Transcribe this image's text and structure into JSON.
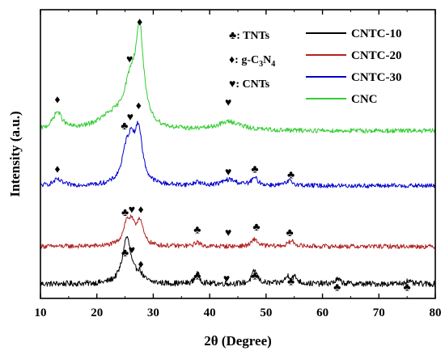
{
  "chart_data": {
    "type": "line",
    "xlabel": "2θ (Degree)",
    "ylabel": "Intensity (a.u.)",
    "xlim": [
      10,
      80
    ],
    "x_ticks": [
      10,
      20,
      30,
      40,
      50,
      60,
      70,
      80
    ],
    "x_tick_labels": [
      "10",
      "20",
      "30",
      "40",
      "50",
      "60",
      "70",
      "80"
    ],
    "y_ticks_shown": false,
    "grid": false,
    "legend_position": "top-right",
    "series": [
      {
        "name": "CNTC-10",
        "color": "#000000",
        "baseline": 0.05,
        "noise": 0.01,
        "peaks": [
          {
            "x": 25.3,
            "height": 0.16,
            "width": 0.9
          },
          {
            "x": 27.5,
            "height": 0.03,
            "width": 0.7
          },
          {
            "x": 37.8,
            "height": 0.035,
            "width": 0.5
          },
          {
            "x": 48.0,
            "height": 0.045,
            "width": 0.6
          },
          {
            "x": 53.9,
            "height": 0.025,
            "width": 0.6
          },
          {
            "x": 55.1,
            "height": 0.02,
            "width": 0.6
          },
          {
            "x": 62.7,
            "height": 0.015,
            "width": 0.6
          },
          {
            "x": 75.0,
            "height": 0.01,
            "width": 0.6
          }
        ]
      },
      {
        "name": "CNTC-20",
        "color": "#b22222",
        "baseline": 0.18,
        "noise": 0.008,
        "peaks": [
          {
            "x": 25.3,
            "height": 0.075,
            "width": 0.8
          },
          {
            "x": 26.2,
            "height": 0.05,
            "width": 0.6
          },
          {
            "x": 27.6,
            "height": 0.085,
            "width": 0.7
          },
          {
            "x": 37.8,
            "height": 0.015,
            "width": 0.5
          },
          {
            "x": 48.0,
            "height": 0.025,
            "width": 0.6
          },
          {
            "x": 54.5,
            "height": 0.018,
            "width": 0.7
          }
        ]
      },
      {
        "name": "CNTC-30",
        "color": "#0000cd",
        "baseline": 0.39,
        "noise": 0.008,
        "peaks": [
          {
            "x": 13.0,
            "height": 0.02,
            "width": 0.9
          },
          {
            "x": 25.3,
            "height": 0.12,
            "width": 1.0
          },
          {
            "x": 26.2,
            "height": 0.08,
            "width": 0.6
          },
          {
            "x": 27.4,
            "height": 0.18,
            "width": 0.8
          },
          {
            "x": 37.8,
            "height": 0.012,
            "width": 0.6
          },
          {
            "x": 43.5,
            "height": 0.02,
            "width": 1.5
          },
          {
            "x": 48.0,
            "height": 0.025,
            "width": 0.7
          },
          {
            "x": 54.2,
            "height": 0.015,
            "width": 0.8
          }
        ]
      },
      {
        "name": "CNC",
        "color": "#32cd32",
        "baseline": 0.58,
        "noise": 0.008,
        "peaks": [
          {
            "x": 13.0,
            "height": 0.06,
            "width": 1.0
          },
          {
            "x": 22.5,
            "height": 0.04,
            "width": 3.0
          },
          {
            "x": 26.0,
            "height": 0.15,
            "width": 1.5
          },
          {
            "x": 27.6,
            "height": 0.3,
            "width": 0.8
          },
          {
            "x": 43.5,
            "height": 0.03,
            "width": 2.5
          }
        ]
      }
    ],
    "annotations": {
      "legend_symbols": [
        {
          "symbol": "♣",
          "text": ": TNTs"
        },
        {
          "symbol": "♦",
          "text": ": g-C",
          "sub": "3",
          "text2": "N",
          "sub2": "4"
        },
        {
          "symbol": "♥",
          "text": ": CNTs"
        }
      ],
      "markers": [
        {
          "symbol": "♦",
          "x": 27.6,
          "y": 0.96
        },
        {
          "symbol": "♥",
          "x": 25.8,
          "y": 0.83
        },
        {
          "symbol": "♦",
          "x": 13.0,
          "y": 0.69
        },
        {
          "symbol": "♥",
          "x": 43.3,
          "y": 0.68
        },
        {
          "symbol": "♦",
          "x": 27.4,
          "y": 0.67
        },
        {
          "symbol": "♥",
          "x": 25.9,
          "y": 0.63
        },
        {
          "symbol": "♣",
          "x": 24.9,
          "y": 0.6
        },
        {
          "symbol": "♦",
          "x": 13.0,
          "y": 0.45
        },
        {
          "symbol": "♥",
          "x": 43.3,
          "y": 0.44
        },
        {
          "symbol": "♣",
          "x": 48.0,
          "y": 0.45
        },
        {
          "symbol": "♣",
          "x": 54.4,
          "y": 0.43
        },
        {
          "symbol": "♣",
          "x": 25.0,
          "y": 0.3
        },
        {
          "symbol": "♥",
          "x": 26.2,
          "y": 0.31
        },
        {
          "symbol": "♦",
          "x": 27.8,
          "y": 0.31
        },
        {
          "symbol": "♣",
          "x": 37.8,
          "y": 0.24
        },
        {
          "symbol": "♥",
          "x": 43.3,
          "y": 0.23
        },
        {
          "symbol": "♣",
          "x": 48.3,
          "y": 0.25
        },
        {
          "symbol": "♣",
          "x": 54.2,
          "y": 0.23
        },
        {
          "symbol": "♣",
          "x": 25.0,
          "y": 0.16
        },
        {
          "symbol": "♥",
          "x": 26.2,
          "y": 0.17
        },
        {
          "symbol": "♦",
          "x": 27.8,
          "y": 0.12
        },
        {
          "symbol": "♣",
          "x": 37.8,
          "y": 0.08
        },
        {
          "symbol": "♥",
          "x": 43.0,
          "y": 0.07
        },
        {
          "symbol": "♣",
          "x": 48.0,
          "y": 0.08
        },
        {
          "symbol": "♣",
          "x": 54.4,
          "y": 0.06
        },
        {
          "symbol": "♣",
          "x": 62.6,
          "y": 0.04
        },
        {
          "symbol": "♣",
          "x": 75.0,
          "y": 0.04
        }
      ]
    }
  }
}
